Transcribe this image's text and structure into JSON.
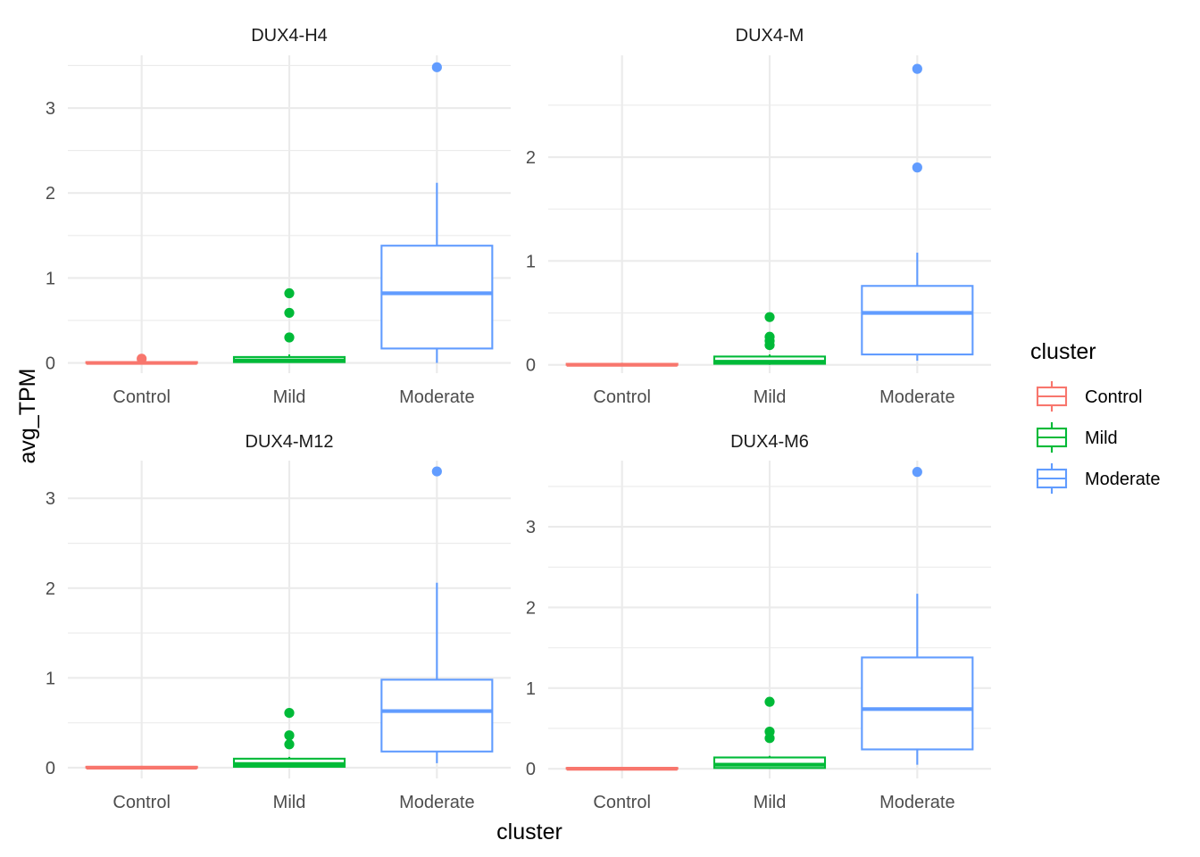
{
  "chart_data": {
    "type": "boxplot",
    "xlabel": "cluster",
    "ylabel": "avg_TPM",
    "categories": [
      "Control",
      "Mild",
      "Moderate"
    ],
    "colors": {
      "Control": "#F8766D",
      "Mild": "#00BA38",
      "Moderate": "#619CFF"
    },
    "legend": {
      "title": "cluster",
      "placement": "right",
      "entries": [
        "Control",
        "Mild",
        "Moderate"
      ]
    },
    "grid": true,
    "panels": [
      {
        "title": "DUX4-H4",
        "ylim": [
          -0.12,
          3.62
        ],
        "yticks": [
          0,
          1,
          2,
          3
        ],
        "boxes": [
          {
            "category": "Control",
            "min": 0,
            "q1": 0,
            "median": 0,
            "q3": 0.01,
            "max": 0.02,
            "outliers": [
              0.05
            ]
          },
          {
            "category": "Mild",
            "min": 0,
            "q1": 0.01,
            "median": 0.03,
            "q3": 0.07,
            "max": 0.1,
            "outliers": [
              0.3,
              0.59,
              0.82
            ]
          },
          {
            "category": "Moderate",
            "min": 0,
            "q1": 0.17,
            "median": 0.82,
            "q3": 1.38,
            "max": 2.12,
            "outliers": [
              3.48
            ]
          }
        ]
      },
      {
        "title": "DUX4-M",
        "ylim": [
          -0.08,
          2.98
        ],
        "yticks": [
          0,
          1,
          2
        ],
        "boxes": [
          {
            "category": "Control",
            "min": 0,
            "q1": 0,
            "median": 0,
            "q3": 0.01,
            "max": 0.02,
            "outliers": []
          },
          {
            "category": "Mild",
            "min": 0,
            "q1": 0.01,
            "median": 0.03,
            "q3": 0.08,
            "max": 0.1,
            "outliers": [
              0.19,
              0.23,
              0.27,
              0.46
            ]
          },
          {
            "category": "Moderate",
            "min": 0.04,
            "q1": 0.1,
            "median": 0.5,
            "q3": 0.76,
            "max": 1.08,
            "outliers": [
              1.9,
              2.85
            ]
          }
        ]
      },
      {
        "title": "DUX4-M12",
        "ylim": [
          -0.12,
          3.42
        ],
        "yticks": [
          0,
          1,
          2,
          3
        ],
        "boxes": [
          {
            "category": "Control",
            "min": 0,
            "q1": 0,
            "median": 0,
            "q3": 0.01,
            "max": 0.02,
            "outliers": []
          },
          {
            "category": "Mild",
            "min": 0,
            "q1": 0.01,
            "median": 0.04,
            "q3": 0.1,
            "max": 0.12,
            "outliers": [
              0.26,
              0.36,
              0.61
            ]
          },
          {
            "category": "Moderate",
            "min": 0.05,
            "q1": 0.18,
            "median": 0.63,
            "q3": 0.98,
            "max": 2.06,
            "outliers": [
              3.3
            ]
          }
        ]
      },
      {
        "title": "DUX4-M6",
        "ylim": [
          -0.12,
          3.82
        ],
        "yticks": [
          0,
          1,
          2,
          3
        ],
        "boxes": [
          {
            "category": "Control",
            "min": 0,
            "q1": 0,
            "median": 0,
            "q3": 0.01,
            "max": 0.02,
            "outliers": []
          },
          {
            "category": "Mild",
            "min": 0,
            "q1": 0.01,
            "median": 0.05,
            "q3": 0.14,
            "max": 0.16,
            "outliers": [
              0.38,
              0.46,
              0.83
            ]
          },
          {
            "category": "Moderate",
            "min": 0.05,
            "q1": 0.24,
            "median": 0.74,
            "q3": 1.38,
            "max": 2.17,
            "outliers": [
              3.68
            ]
          }
        ]
      }
    ]
  }
}
